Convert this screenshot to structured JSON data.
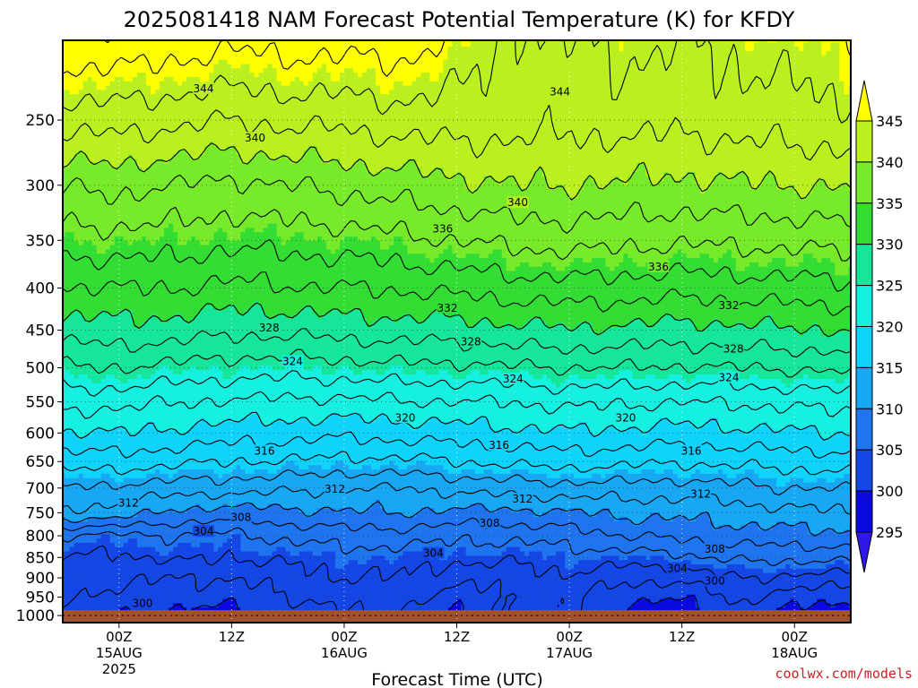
{
  "chart_data": {
    "type": "heatmap",
    "title": "2025081418 NAM Forecast Potential Temperature (K) for KFDY",
    "xlabel": "Forecast Time (UTC)",
    "ylabel": "",
    "credit": "coolwx.com/models",
    "x_ticks": [
      {
        "hours": 6,
        "line1": "00Z",
        "line2": "15AUG",
        "line3": "2025"
      },
      {
        "hours": 18,
        "line1": "12Z",
        "line2": "",
        "line3": ""
      },
      {
        "hours": 30,
        "line1": "00Z",
        "line2": "16AUG",
        "line3": ""
      },
      {
        "hours": 42,
        "line1": "12Z",
        "line2": "",
        "line3": ""
      },
      {
        "hours": 54,
        "line1": "00Z",
        "line2": "17AUG",
        "line3": ""
      },
      {
        "hours": 66,
        "line1": "12Z",
        "line2": "",
        "line3": ""
      },
      {
        "hours": 78,
        "line1": "00Z",
        "line2": "18AUG",
        "line3": ""
      }
    ],
    "xlim_hours": [
      0,
      84
    ],
    "y_ticks": [
      250,
      300,
      350,
      400,
      450,
      500,
      550,
      600,
      650,
      700,
      750,
      800,
      850,
      900,
      950,
      1000
    ],
    "ylim_hpa": [
      200,
      1020
    ],
    "y_scale": "log-pressure",
    "grid": true,
    "colorbar": {
      "labels": [
        345,
        340,
        335,
        330,
        325,
        320,
        315,
        310,
        305,
        300,
        295
      ],
      "bins": [
        {
          "from": 345,
          "to": 350,
          "color": "#ffff00"
        },
        {
          "from": 340,
          "to": 345,
          "color": "#bbf020"
        },
        {
          "from": 335,
          "to": 340,
          "color": "#77ea2a"
        },
        {
          "from": 330,
          "to": 335,
          "color": "#33dd33"
        },
        {
          "from": 325,
          "to": 330,
          "color": "#16e69a"
        },
        {
          "from": 320,
          "to": 325,
          "color": "#16f0e0"
        },
        {
          "from": 315,
          "to": 320,
          "color": "#0fd3fb"
        },
        {
          "from": 310,
          "to": 315,
          "color": "#18a8f3"
        },
        {
          "from": 305,
          "to": 310,
          "color": "#1f74ef"
        },
        {
          "from": 300,
          "to": 305,
          "color": "#1447e6"
        },
        {
          "from": 295,
          "to": 300,
          "color": "#0a0ae0"
        },
        {
          "from": 290,
          "to": 295,
          "color": "#3018e8"
        }
      ],
      "over_color": "#ffff00",
      "under_color": "#3018e8"
    },
    "surface_color": "#a0522d",
    "surface_pressure_hpa": 985,
    "contour_interval_k": 2,
    "contour_labels": [
      {
        "value": 344,
        "hours": 15,
        "p": 229
      },
      {
        "value": 344,
        "hours": 53,
        "p": 231
      },
      {
        "value": 340,
        "hours": 20.5,
        "p": 263
      },
      {
        "value": 340,
        "hours": 48.5,
        "p": 315
      },
      {
        "value": 336,
        "hours": 40.5,
        "p": 339
      },
      {
        "value": 336,
        "hours": 63.5,
        "p": 377
      },
      {
        "value": 332,
        "hours": 41,
        "p": 423
      },
      {
        "value": 332,
        "hours": 71,
        "p": 420
      },
      {
        "value": 328,
        "hours": 22,
        "p": 447
      },
      {
        "value": 328,
        "hours": 43.5,
        "p": 465
      },
      {
        "value": 328,
        "hours": 71.5,
        "p": 474
      },
      {
        "value": 324,
        "hours": 24.5,
        "p": 491
      },
      {
        "value": 324,
        "hours": 48,
        "p": 516
      },
      {
        "value": 324,
        "hours": 71,
        "p": 514
      },
      {
        "value": 320,
        "hours": 36.5,
        "p": 575
      },
      {
        "value": 320,
        "hours": 60,
        "p": 575
      },
      {
        "value": 316,
        "hours": 21.5,
        "p": 631
      },
      {
        "value": 316,
        "hours": 46.5,
        "p": 621
      },
      {
        "value": 316,
        "hours": 67,
        "p": 631
      },
      {
        "value": 312,
        "hours": 7,
        "p": 730
      },
      {
        "value": 312,
        "hours": 29,
        "p": 702
      },
      {
        "value": 312,
        "hours": 49,
        "p": 722
      },
      {
        "value": 312,
        "hours": 68,
        "p": 712
      },
      {
        "value": 308,
        "hours": 19,
        "p": 760
      },
      {
        "value": 308,
        "hours": 45.5,
        "p": 772
      },
      {
        "value": 308,
        "hours": 69.5,
        "p": 830
      },
      {
        "value": 304,
        "hours": 15,
        "p": 790
      },
      {
        "value": 304,
        "hours": 39.5,
        "p": 840
      },
      {
        "value": 304,
        "hours": 65.5,
        "p": 876
      },
      {
        "value": 300,
        "hours": 8.5,
        "p": 967
      },
      {
        "value": 300,
        "hours": 69.5,
        "p": 908
      }
    ],
    "profile_times_hours": [
      0,
      6,
      12,
      18,
      24,
      30,
      36,
      42,
      48,
      54,
      60,
      66,
      72,
      78,
      84
    ],
    "profile_pressures_hpa": [
      200,
      250,
      300,
      350,
      400,
      450,
      500,
      550,
      600,
      650,
      700,
      750,
      800,
      850,
      900,
      950,
      985
    ],
    "theta_profiles_k": [
      [
        347.5,
        343.0,
        338.2,
        335.0,
        331.8,
        329.0,
        325.8,
        322.5,
        319.8,
        317.0,
        313.8,
        311.6,
        306.0,
        304.0,
        303.0,
        302.0,
        301.0
      ],
      [
        347.5,
        342.8,
        338.5,
        335.2,
        332.0,
        329.2,
        326.0,
        322.7,
        320.0,
        317.0,
        313.5,
        311.2,
        305.5,
        303.5,
        302.5,
        301.5,
        300.5
      ],
      [
        347.0,
        342.5,
        338.0,
        335.0,
        332.0,
        329.0,
        325.5,
        322.0,
        319.5,
        316.5,
        313.0,
        309.5,
        306.0,
        304.5,
        302.0,
        301.0,
        299.8
      ],
      [
        346.5,
        342.0,
        337.5,
        334.5,
        331.5,
        328.5,
        325.0,
        321.8,
        319.0,
        316.0,
        312.8,
        309.0,
        305.5,
        304.0,
        302.0,
        300.8,
        299.5
      ],
      [
        346.8,
        342.5,
        338.0,
        334.8,
        331.8,
        328.5,
        325.0,
        321.5,
        318.8,
        315.8,
        312.5,
        309.5,
        306.5,
        304.5,
        303.0,
        302.0,
        301.0
      ],
      [
        346.8,
        342.5,
        338.5,
        335.0,
        332.0,
        328.8,
        325.2,
        321.5,
        318.5,
        315.5,
        312.0,
        309.8,
        307.0,
        305.0,
        304.0,
        303.0,
        302.0
      ],
      [
        347.0,
        343.0,
        339.0,
        335.5,
        332.2,
        329.0,
        325.5,
        321.8,
        318.8,
        315.5,
        312.0,
        310.0,
        307.0,
        305.0,
        304.0,
        303.0,
        302.0
      ],
      [
        345.5,
        343.0,
        339.5,
        336.0,
        332.5,
        329.0,
        325.5,
        322.0,
        319.0,
        316.0,
        312.5,
        309.5,
        306.5,
        304.5,
        302.5,
        301.0,
        300.0
      ],
      [
        343.5,
        342.8,
        340.0,
        336.5,
        333.0,
        329.5,
        325.8,
        322.0,
        319.5,
        316.5,
        313.0,
        309.5,
        306.5,
        304.5,
        302.8,
        302.0,
        302.5
      ],
      [
        344.0,
        342.5,
        340.0,
        336.8,
        333.2,
        329.8,
        326.0,
        322.5,
        319.8,
        316.8,
        313.2,
        309.8,
        307.0,
        305.0,
        303.8,
        302.5,
        302.8
      ],
      [
        344.5,
        342.8,
        339.8,
        336.5,
        333.0,
        329.5,
        326.0,
        322.2,
        319.5,
        316.5,
        313.2,
        310.5,
        308.0,
        305.0,
        302.5,
        300.5,
        299.5
      ],
      [
        344.0,
        342.5,
        339.5,
        336.2,
        332.8,
        329.2,
        325.8,
        322.0,
        319.2,
        316.2,
        313.0,
        310.5,
        308.5,
        305.5,
        302.5,
        300.2,
        299.0
      ],
      [
        344.5,
        343.0,
        339.8,
        336.5,
        333.0,
        329.5,
        326.0,
        322.2,
        319.5,
        316.5,
        313.5,
        311.0,
        309.0,
        306.5,
        304.0,
        302.5,
        301.5
      ],
      [
        345.0,
        343.0,
        340.0,
        336.5,
        333.2,
        329.8,
        326.2,
        322.5,
        319.8,
        316.8,
        314.0,
        311.5,
        309.2,
        306.5,
        303.5,
        301.0,
        299.5
      ],
      [
        345.5,
        343.5,
        340.2,
        336.8,
        333.5,
        330.0,
        326.5,
        322.8,
        320.0,
        317.0,
        314.2,
        311.8,
        309.5,
        306.5,
        303.0,
        300.5,
        299.0
      ]
    ]
  }
}
